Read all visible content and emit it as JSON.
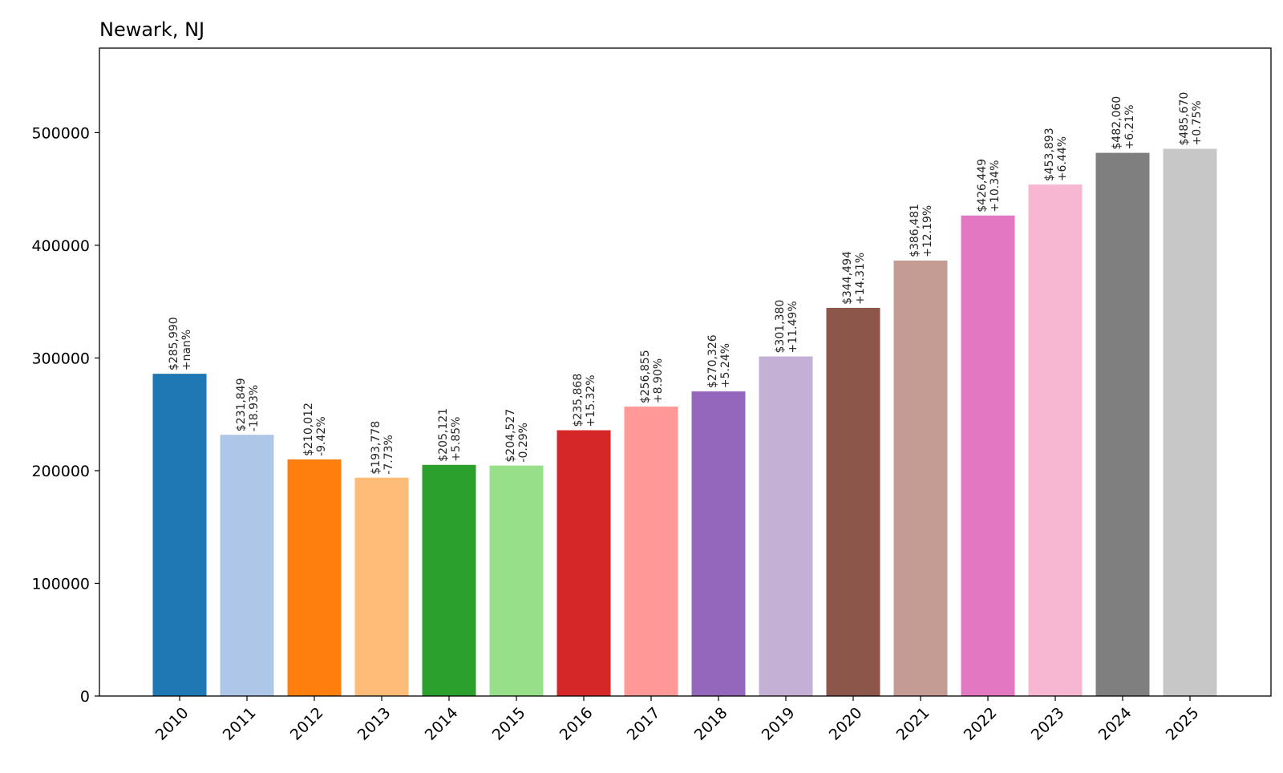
{
  "chart_data": {
    "type": "bar",
    "title": "Newark, NJ",
    "xlabel": "",
    "ylabel": "",
    "ylim": [
      0,
      575000
    ],
    "yticks": [
      0,
      100000,
      200000,
      300000,
      400000,
      500000
    ],
    "ytick_labels": [
      "0",
      "100000",
      "200000",
      "300000",
      "400000",
      "500000"
    ],
    "grid": false,
    "categories": [
      "2010",
      "2011",
      "2012",
      "2013",
      "2014",
      "2015",
      "2016",
      "2017",
      "2018",
      "2019",
      "2020",
      "2021",
      "2022",
      "2023",
      "2024",
      "2025"
    ],
    "values": [
      285990,
      231849,
      210012,
      193778,
      205121,
      204527,
      235868,
      256855,
      270326,
      301380,
      344494,
      386481,
      426449,
      453893,
      482060,
      485670
    ],
    "value_labels": [
      "$285,990",
      "$231,849",
      "$210,012",
      "$193,778",
      "$205,121",
      "$204,527",
      "$235,868",
      "$256,855",
      "$270,326",
      "$301,380",
      "$344,494",
      "$386,481",
      "$426,449",
      "$453,893",
      "$482,060",
      "$485,670"
    ],
    "change_labels": [
      "+nan%",
      "-18.93%",
      "-9.42%",
      "-7.73%",
      "+5.85%",
      "-0.29%",
      "+15.32%",
      "+8.90%",
      "+5.24%",
      "+11.49%",
      "+14.31%",
      "+12.19%",
      "+10.34%",
      "+6.44%",
      "+6.21%",
      "+0.75%"
    ],
    "colors": [
      "#1f77b4",
      "#aec7e8",
      "#ff7f0e",
      "#ffbb78",
      "#2ca02c",
      "#98df8a",
      "#d62728",
      "#ff9896",
      "#9467bd",
      "#c5b0d5",
      "#8c564b",
      "#c49c94",
      "#e377c2",
      "#f7b6d2",
      "#7f7f7f",
      "#c7c7c7"
    ]
  }
}
